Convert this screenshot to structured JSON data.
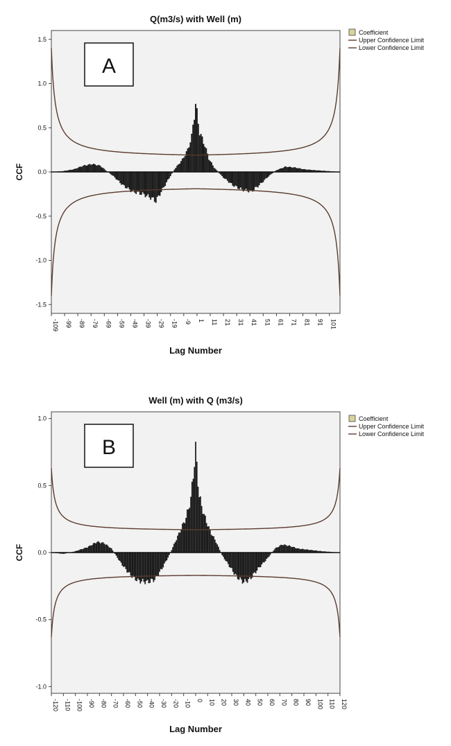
{
  "chart_data": [
    {
      "type": "bar",
      "panel_label": "A",
      "title": "Q(m3/s) with Well (m)",
      "xlabel": "Lag Number",
      "ylabel": "CCF",
      "xlim": [
        -109,
        109
      ],
      "ylim": [
        -1.6,
        1.6
      ],
      "y_ticks": [
        "1.5",
        "1.0",
        "0.5",
        "0.0",
        "-0.5",
        "-1.0",
        "-1.5"
      ],
      "x_ticks": [
        "-109",
        "-99",
        "-89",
        "-79",
        "-69",
        "-59",
        "-49",
        "-39",
        "-29",
        "-19",
        "-9",
        "1",
        "11",
        "21",
        "31",
        "41",
        "51",
        "61",
        "71",
        "81",
        "91",
        "101"
      ],
      "legend": [
        "Coefficient",
        "Upper Confidence Limit",
        "Lower Confidence Limit"
      ],
      "legend_position": "top-right, outside plot",
      "grid": false,
      "colors": {
        "bars": "#1a1a1a",
        "limits": "#5a3a2e",
        "legend_swatch": "#d8d49a",
        "plot_bg": "#f2f2f2"
      },
      "coefficient_profile": [
        [
          -109,
          0.0
        ],
        [
          -100,
          0.01
        ],
        [
          -92,
          0.03
        ],
        [
          -85,
          0.07
        ],
        [
          -78,
          0.09
        ],
        [
          -72,
          0.07
        ],
        [
          -68,
          0.02
        ],
        [
          -62,
          -0.05
        ],
        [
          -55,
          -0.15
        ],
        [
          -48,
          -0.22
        ],
        [
          -40,
          -0.25
        ],
        [
          -34,
          -0.29
        ],
        [
          -30,
          -0.33
        ],
        [
          -27,
          -0.25
        ],
        [
          -22,
          -0.12
        ],
        [
          -16,
          0.03
        ],
        [
          -10,
          0.14
        ],
        [
          -6,
          0.25
        ],
        [
          -3,
          0.4
        ],
        [
          0,
          0.77
        ],
        [
          3,
          0.45
        ],
        [
          7,
          0.3
        ],
        [
          10,
          0.15
        ],
        [
          14,
          0.05
        ],
        [
          20,
          -0.05
        ],
        [
          28,
          -0.15
        ],
        [
          35,
          -0.2
        ],
        [
          42,
          -0.22
        ],
        [
          48,
          -0.15
        ],
        [
          55,
          -0.05
        ],
        [
          61,
          0.02
        ],
        [
          68,
          0.06
        ],
        [
          75,
          0.05
        ],
        [
          82,
          0.03
        ],
        [
          90,
          0.02
        ],
        [
          100,
          0.01
        ],
        [
          109,
          0.0
        ]
      ],
      "confidence_limit_at_lag0": 0.19,
      "confidence_limit_at_edges": 1.4
    },
    {
      "type": "bar",
      "panel_label": "B",
      "title": "Well (m) with Q (m3/s)",
      "xlabel": "Lag Number",
      "ylabel": "CCF",
      "xlim": [
        -120,
        120
      ],
      "ylim": [
        -1.05,
        1.05
      ],
      "y_ticks": [
        "1.0",
        "0.5",
        "0.0",
        "-0.5",
        "-1.0"
      ],
      "x_ticks": [
        "-120",
        "-110",
        "-100",
        "-90",
        "-80",
        "-70",
        "-60",
        "-50",
        "-40",
        "-30",
        "-20",
        "-10",
        "0",
        "10",
        "20",
        "30",
        "40",
        "50",
        "60",
        "70",
        "80",
        "90",
        "100",
        "110",
        "120"
      ],
      "legend": [
        "Coefficient",
        "Upper Confidence Limit",
        "Lower Confidence Limit"
      ],
      "legend_position": "top-right, outside plot",
      "grid": false,
      "colors": {
        "bars": "#1a1a1a",
        "limits": "#5a3a2e",
        "legend_swatch": "#d8d49a",
        "plot_bg": "#f2f2f2"
      },
      "coefficient_profile": [
        [
          -120,
          0.0
        ],
        [
          -110,
          -0.01
        ],
        [
          -100,
          0.01
        ],
        [
          -90,
          0.04
        ],
        [
          -82,
          0.08
        ],
        [
          -76,
          0.07
        ],
        [
          -70,
          0.03
        ],
        [
          -62,
          -0.08
        ],
        [
          -55,
          -0.16
        ],
        [
          -48,
          -0.21
        ],
        [
          -40,
          -0.22
        ],
        [
          -34,
          -0.2
        ],
        [
          -28,
          -0.12
        ],
        [
          -22,
          -0.02
        ],
        [
          -17,
          0.08
        ],
        [
          -12,
          0.18
        ],
        [
          -8,
          0.26
        ],
        [
          -4,
          0.4
        ],
        [
          0,
          0.77
        ],
        [
          3,
          0.42
        ],
        [
          7,
          0.28
        ],
        [
          12,
          0.16
        ],
        [
          17,
          0.08
        ],
        [
          22,
          -0.02
        ],
        [
          28,
          -0.1
        ],
        [
          34,
          -0.18
        ],
        [
          40,
          -0.22
        ],
        [
          45,
          -0.2
        ],
        [
          52,
          -0.12
        ],
        [
          60,
          -0.04
        ],
        [
          66,
          0.03
        ],
        [
          72,
          0.06
        ],
        [
          78,
          0.05
        ],
        [
          85,
          0.03
        ],
        [
          95,
          0.02
        ],
        [
          105,
          0.01
        ],
        [
          120,
          0.0
        ]
      ],
      "confidence_limit_at_lag0": 0.17,
      "confidence_limit_at_edges": 0.63
    }
  ]
}
